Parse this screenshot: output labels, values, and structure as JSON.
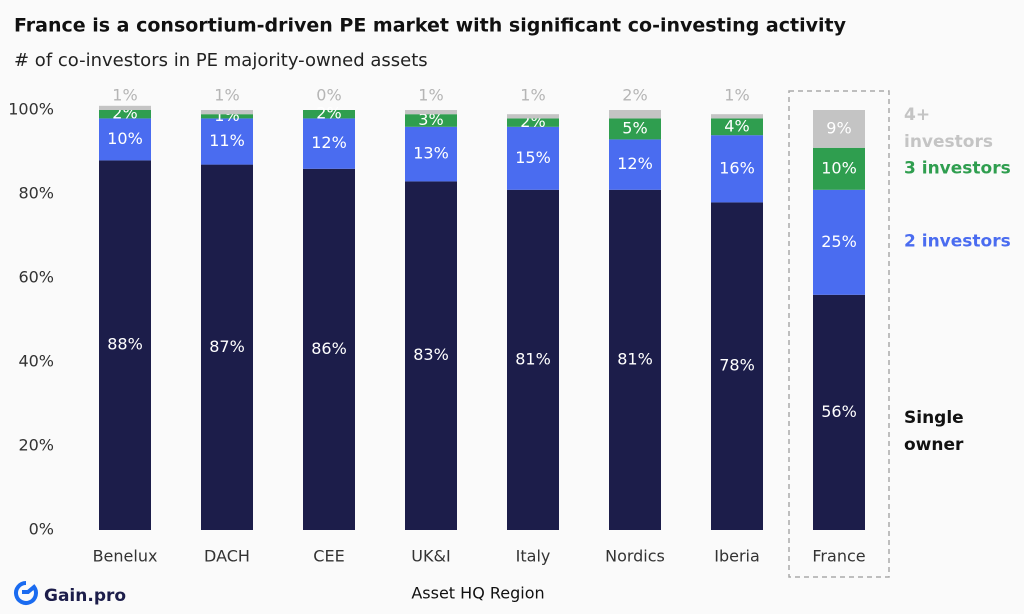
{
  "chart_data": {
    "type": "stacked_bar",
    "title": "France is a consortium-driven PE market with significant co-investing activity",
    "subtitle": "# of co-investors in PE majority-owned assets",
    "x_label": "Asset HQ Region",
    "logo_text": "Gain.pro",
    "categories": [
      "Benelux",
      "DACH",
      "CEE",
      "UK&I",
      "Italy",
      "Nordics",
      "Iberia",
      "France"
    ],
    "highlight_category": "France",
    "ylim": [
      0,
      100
    ],
    "yticks": [
      {
        "value": 0,
        "label": "0%"
      },
      {
        "value": 20,
        "label": "20%"
      },
      {
        "value": 40,
        "label": "40%"
      },
      {
        "value": 60,
        "label": "60%"
      },
      {
        "value": 80,
        "label": "80%"
      },
      {
        "value": 100,
        "label": "100%"
      }
    ],
    "series": [
      {
        "name": "Single owner",
        "color": "#1c1d4a",
        "legend_color": "#111111",
        "values": [
          88,
          87,
          86,
          83,
          81,
          81,
          78,
          56
        ],
        "value_labels": [
          "88%",
          "87%",
          "86%",
          "83%",
          "81%",
          "81%",
          "78%",
          "56%"
        ]
      },
      {
        "name": "2 investors",
        "color": "#4a6cf0",
        "legend_color": "#4a6cf0",
        "values": [
          10,
          11,
          12,
          13,
          15,
          12,
          16,
          25
        ],
        "value_labels": [
          "10%",
          "11%",
          "12%",
          "13%",
          "15%",
          "12%",
          "16%",
          "25%"
        ]
      },
      {
        "name": "3 investors",
        "color": "#2f9e4f",
        "legend_color": "#2f9e4f",
        "values": [
          2,
          1,
          2,
          3,
          2,
          5,
          4,
          10
        ],
        "value_labels": [
          "2%",
          "1%",
          "2%",
          "3%",
          "2%",
          "5%",
          "4%",
          "10%"
        ]
      },
      {
        "name": "4+ investors",
        "color": "#c4c4c4",
        "legend_color": "#c4c4c4",
        "values": [
          1,
          1,
          0,
          1,
          1,
          2,
          1,
          9
        ],
        "value_labels": [
          "1%",
          "1%",
          "0%",
          "1%",
          "1%",
          "2%",
          "1%",
          "9%"
        ]
      }
    ]
  }
}
